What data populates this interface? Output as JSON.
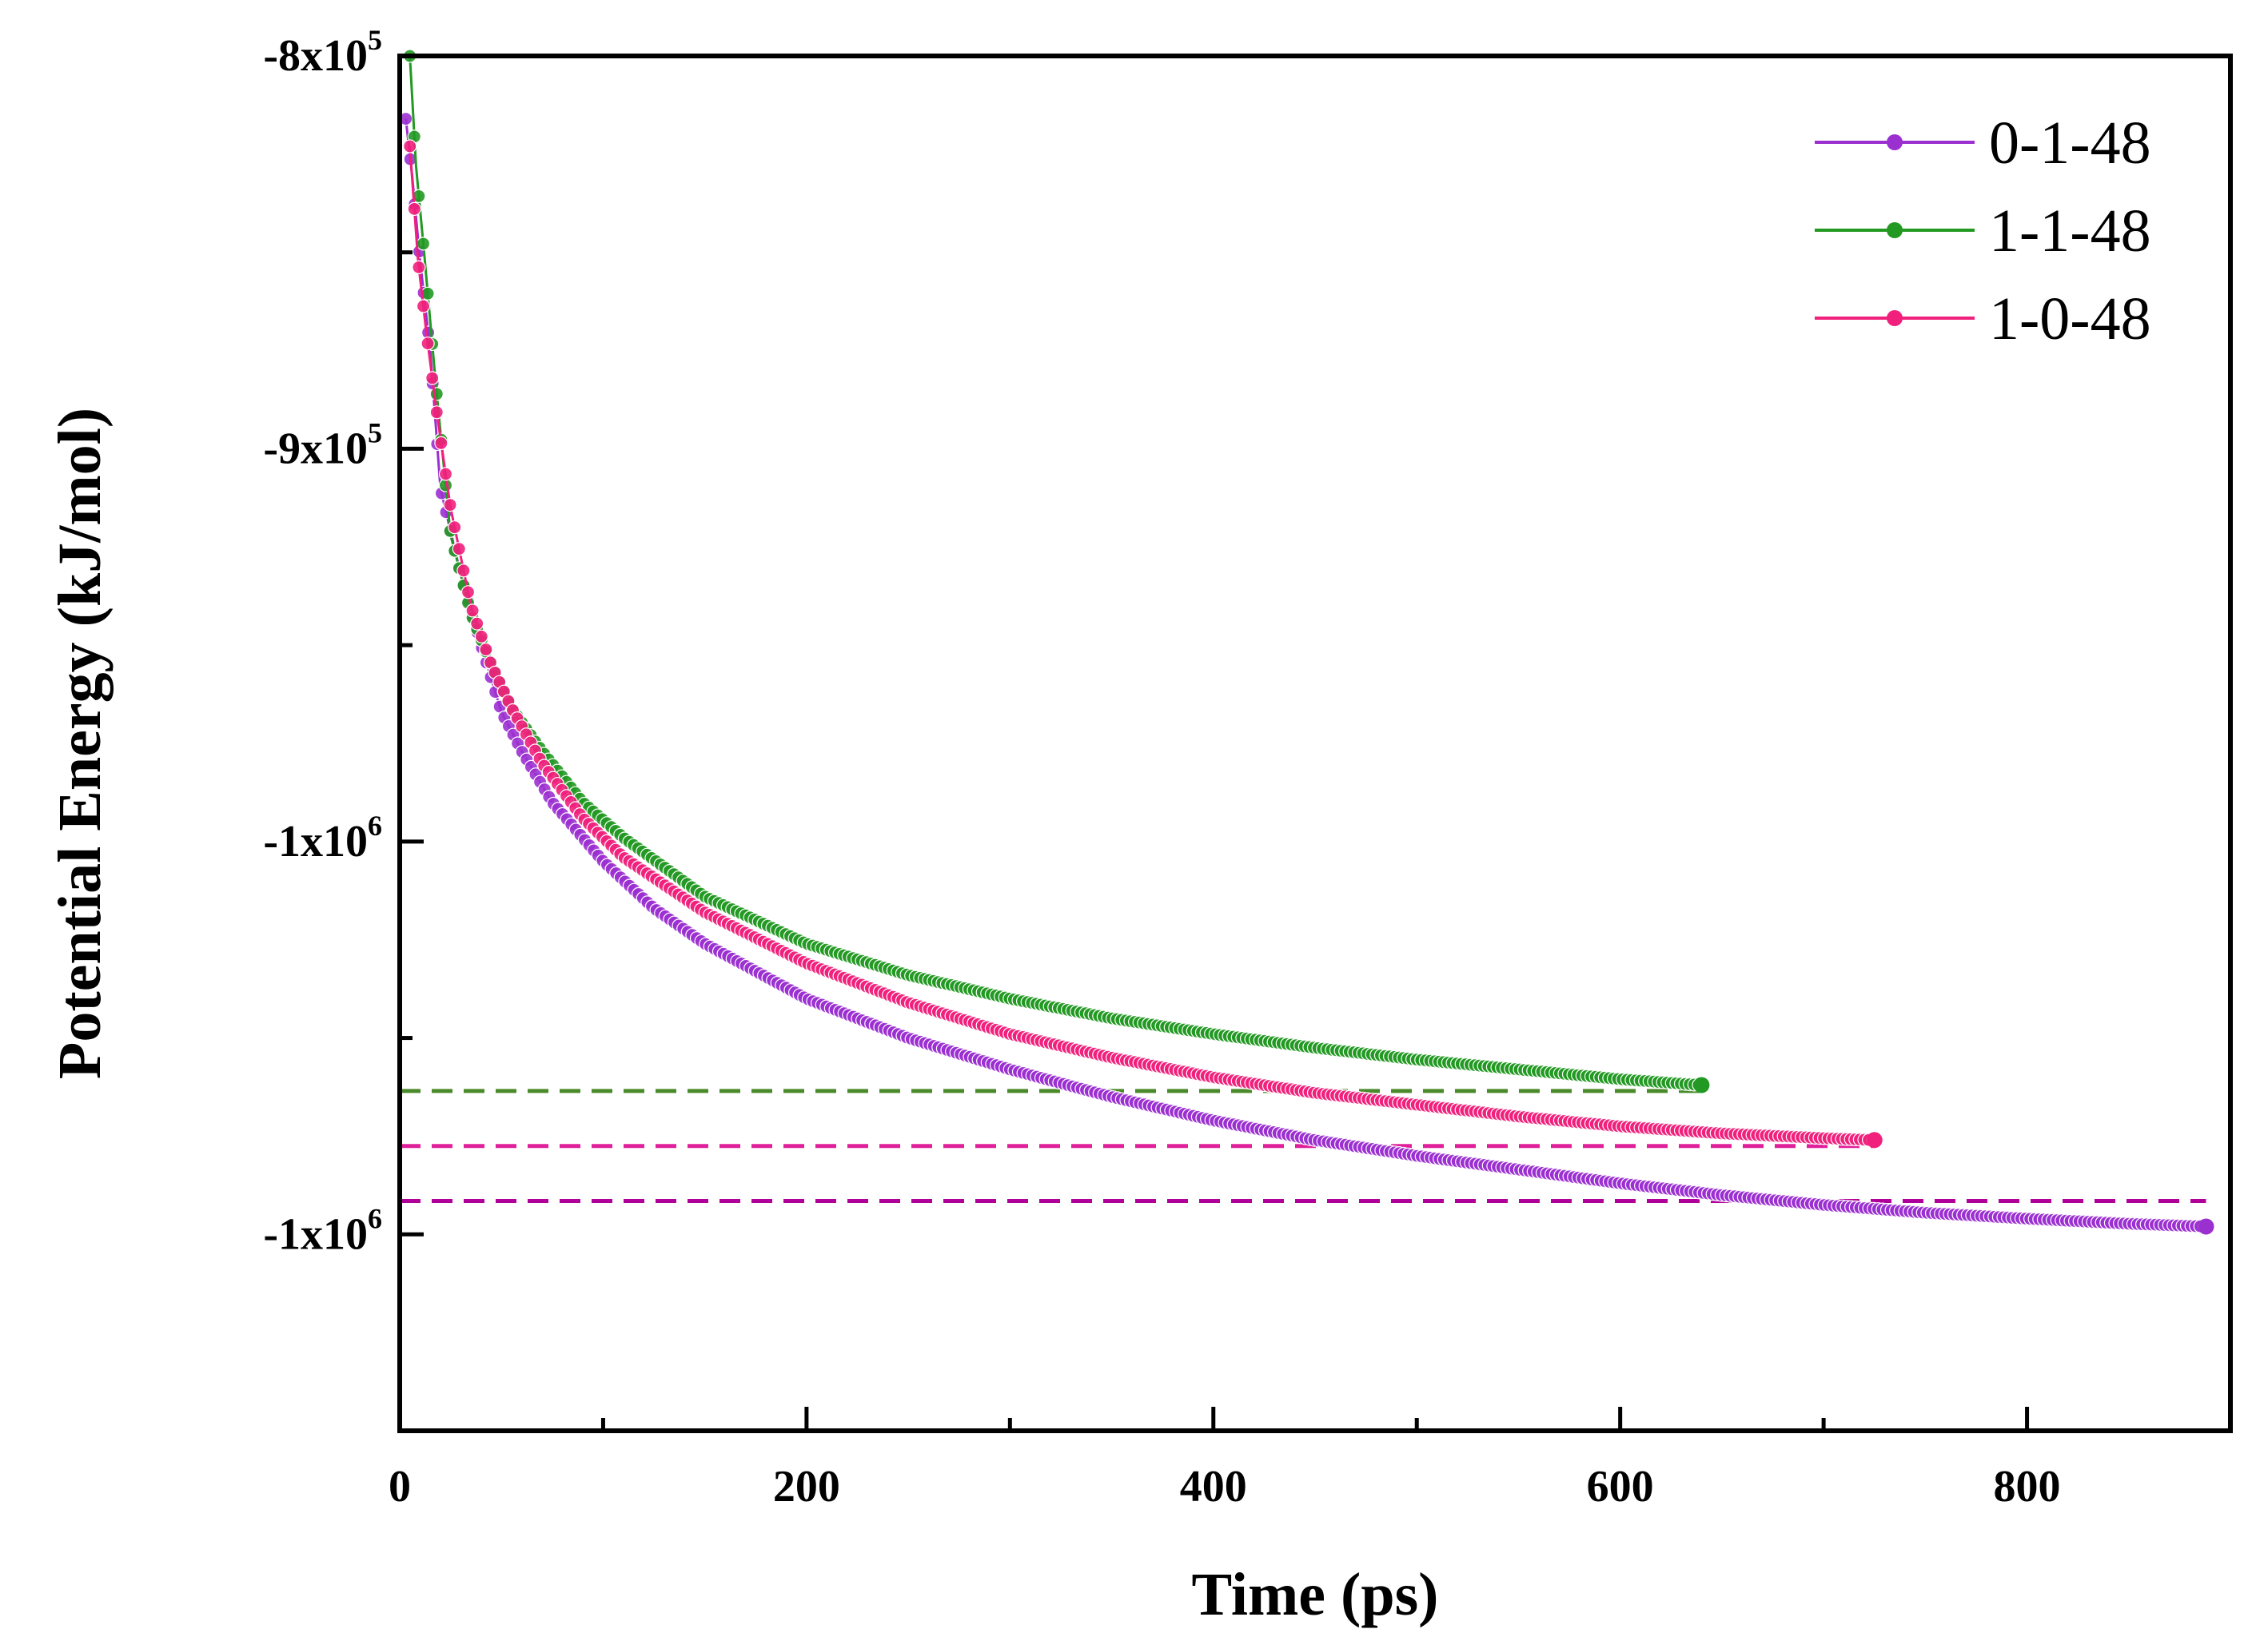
{
  "chart_data": {
    "type": "scatter",
    "title": "",
    "xlabel": "Time (ps)",
    "ylabel": "Potential Energy (kJ/mol)",
    "xlim": [
      0,
      900
    ],
    "ylim": [
      -1150000,
      -800000
    ],
    "x_ticks": [
      {
        "value": 0,
        "label": "0"
      },
      {
        "value": 200,
        "label": "200"
      },
      {
        "value": 400,
        "label": "400"
      },
      {
        "value": 600,
        "label": "600"
      },
      {
        "value": 800,
        "label": "800"
      }
    ],
    "x_minor_ticks": [
      100,
      300,
      500,
      700
    ],
    "y_ticks": [
      {
        "value": -800000,
        "mantissa": "-8x10",
        "exp": "5"
      },
      {
        "value": -900000,
        "mantissa": "-9x10",
        "exp": "5"
      },
      {
        "value": -1000000,
        "mantissa": "-1x10",
        "exp": "6"
      },
      {
        "value": -1100000,
        "mantissa": "-1x10",
        "exp": "6"
      }
    ],
    "y_minor_ticks": [
      -850000,
      -950000,
      -1050000
    ],
    "legend_position": "top-right",
    "series": [
      {
        "name": "0-1-48",
        "color": "#9b30d0",
        "x_end": 888,
        "y_final": -1098000,
        "x": [
          3,
          6,
          10,
          15,
          20,
          30,
          40,
          50,
          60,
          75,
          100,
          125,
          150,
          175,
          200,
          250,
          300,
          350,
          400,
          450,
          500,
          550,
          600,
          650,
          700,
          750,
          800,
          850,
          888
        ],
        "y": [
          -816000,
          -830000,
          -852000,
          -875000,
          -910000,
          -932000,
          -950000,
          -967000,
          -977000,
          -990000,
          -1005000,
          -1017000,
          -1026000,
          -1033000,
          -1040000,
          -1050000,
          -1058000,
          -1065000,
          -1071000,
          -1076000,
          -1080000,
          -1083500,
          -1087000,
          -1090000,
          -1092500,
          -1094500,
          -1096000,
          -1097300,
          -1098000
        ]
      },
      {
        "name": "1-1-48",
        "color": "#229922",
        "x_end": 640,
        "y_final": -1062000,
        "x": [
          5,
          8,
          12,
          18,
          25,
          35,
          45,
          55,
          70,
          90,
          110,
          150,
          200,
          250,
          300,
          350,
          400,
          450,
          500,
          550,
          600,
          640
        ],
        "y": [
          -800000,
          -828000,
          -850000,
          -885000,
          -922000,
          -942000,
          -955000,
          -966000,
          -977000,
          -990000,
          -999000,
          -1014000,
          -1026000,
          -1034000,
          -1040000,
          -1045000,
          -1049000,
          -1052500,
          -1055500,
          -1058000,
          -1060500,
          -1062000
        ]
      },
      {
        "name": "1-0-48",
        "color": "#f0207c",
        "x_end": 725,
        "y_final": -1076000,
        "x": [
          5,
          9,
          13,
          18,
          25,
          35,
          45,
          55,
          70,
          90,
          110,
          150,
          200,
          250,
          300,
          350,
          400,
          450,
          500,
          550,
          600,
          650,
          700,
          725
        ],
        "y": [
          -823000,
          -852000,
          -870000,
          -890000,
          -915000,
          -940000,
          -955000,
          -966000,
          -980000,
          -994000,
          -1004000,
          -1018000,
          -1031000,
          -1041000,
          -1049000,
          -1055000,
          -1060000,
          -1064000,
          -1067000,
          -1070000,
          -1072500,
          -1074300,
          -1075500,
          -1076000
        ]
      }
    ],
    "reference_lines": [
      {
        "name": "1-1-48 final",
        "y": -1063500,
        "x_from": 0,
        "x_to": 640,
        "color": "#4a8a2a"
      },
      {
        "name": "1-0-48 final",
        "y": -1077500,
        "x_from": 0,
        "x_to": 725,
        "color": "#e0209a"
      },
      {
        "name": "0-1-48 final",
        "y": -1091500,
        "x_from": 0,
        "x_to": 888,
        "color": "#b0009a"
      }
    ]
  }
}
